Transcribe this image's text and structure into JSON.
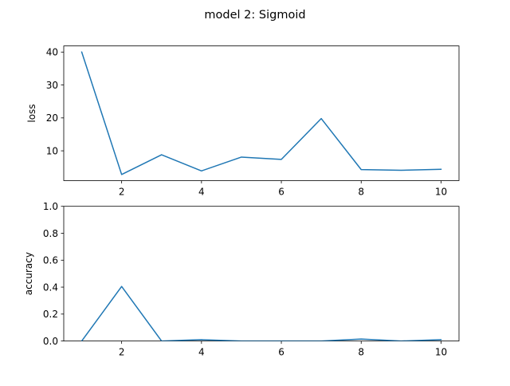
{
  "figure": {
    "title": "model 2: Sigmoid"
  },
  "colors": {
    "line": "#1f77b4",
    "axes": "#000000",
    "background": "#ffffff"
  },
  "chart_data": [
    {
      "type": "line",
      "ylabel": "loss",
      "xlabel": "",
      "x": [
        1,
        2,
        3,
        4,
        5,
        6,
        7,
        8,
        9,
        10
      ],
      "series": [
        {
          "values": [
            40.0,
            2.8,
            8.8,
            3.9,
            8.1,
            7.4,
            19.8,
            4.3,
            4.1,
            4.4
          ]
        }
      ],
      "xlim": [
        0.55,
        10.45
      ],
      "ylim": [
        0.94,
        41.86
      ],
      "xticks": [
        2,
        4,
        6,
        8,
        10
      ],
      "yticks": [
        10,
        20,
        30,
        40
      ],
      "xtick_labels": [
        "2",
        "4",
        "6",
        "8",
        "10"
      ],
      "ytick_labels": [
        "10",
        "20",
        "30",
        "40"
      ],
      "grid": false
    },
    {
      "type": "line",
      "ylabel": "accuracy",
      "xlabel": "",
      "x": [
        1,
        2,
        3,
        4,
        5,
        6,
        7,
        8,
        9,
        10
      ],
      "series": [
        {
          "values": [
            0.0,
            0.405,
            0.0,
            0.01,
            0.0,
            0.0,
            0.0,
            0.015,
            0.0,
            0.01
          ]
        }
      ],
      "xlim": [
        0.55,
        10.45
      ],
      "ylim": [
        0.0,
        1.0
      ],
      "xticks": [
        2,
        4,
        6,
        8,
        10
      ],
      "yticks": [
        0.0,
        0.2,
        0.4,
        0.6,
        0.8,
        1.0
      ],
      "xtick_labels": [
        "2",
        "4",
        "6",
        "8",
        "10"
      ],
      "ytick_labels": [
        "0.0",
        "0.2",
        "0.4",
        "0.6",
        "0.8",
        "1.0"
      ],
      "grid": false
    }
  ]
}
